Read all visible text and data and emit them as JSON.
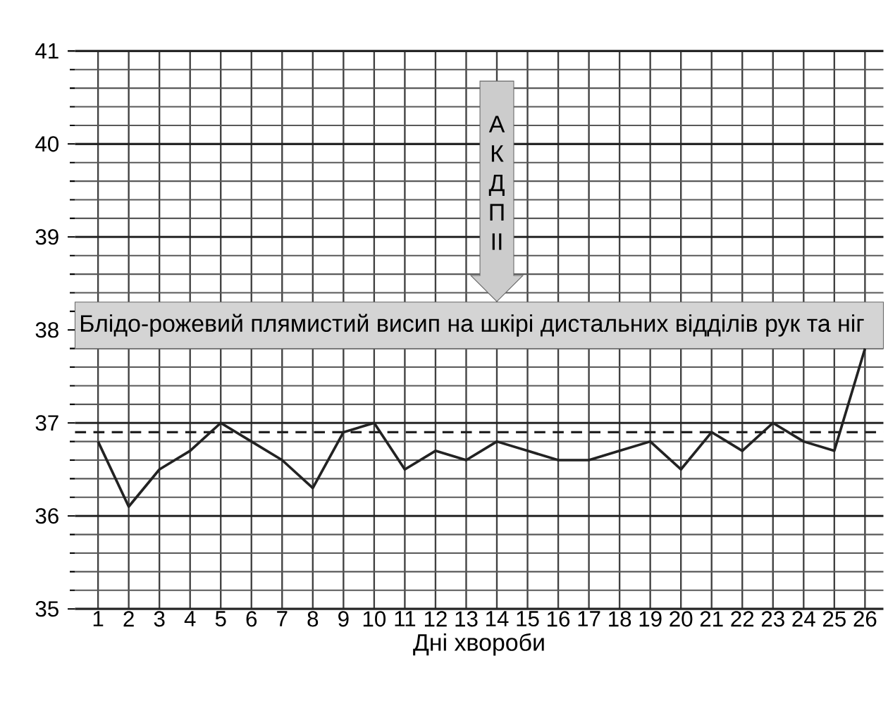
{
  "chart_data": {
    "type": "line",
    "xlabel": "Дні хвороби",
    "x": [
      1,
      2,
      3,
      4,
      5,
      6,
      7,
      8,
      9,
      10,
      11,
      12,
      13,
      14,
      15,
      16,
      17,
      18,
      19,
      20,
      21,
      22,
      23,
      24,
      25,
      26
    ],
    "series": [
      {
        "color": "#222222",
        "values": [
          36.8,
          36.1,
          36.5,
          36.7,
          37.0,
          36.8,
          36.6,
          36.3,
          36.9,
          37.0,
          36.5,
          36.7,
          36.6,
          36.8,
          36.7,
          36.6,
          36.6,
          36.7,
          36.8,
          36.5,
          36.9,
          36.7,
          37.0,
          36.8,
          36.7,
          37.8
        ]
      }
    ],
    "xlim": [
      0.25,
      26.6
    ],
    "xticks": [
      1,
      2,
      3,
      4,
      5,
      6,
      7,
      8,
      9,
      10,
      11,
      12,
      13,
      14,
      15,
      16,
      17,
      18,
      19,
      20,
      21,
      22,
      23,
      24,
      25,
      26
    ],
    "ylim": [
      35,
      41
    ],
    "yticks": [
      35,
      36,
      37,
      38,
      39,
      40,
      41
    ],
    "grid": true,
    "marker": "none",
    "line_style": "solid",
    "ref_lines": [
      {
        "axis": "y",
        "value": 36.9,
        "line_style": "dashed",
        "color": "#222222"
      }
    ],
    "bands": [
      {
        "axis": "y",
        "from": 37.8,
        "to": 38.3,
        "label": "Блідо-рожевий плямистий висип на шкірі дистальних відділів рук та ніг",
        "color": "#d4d4d4"
      }
    ],
    "annotations": [
      {
        "text": "А К Д П II",
        "x": 14,
        "y": 38.3
      }
    ]
  }
}
